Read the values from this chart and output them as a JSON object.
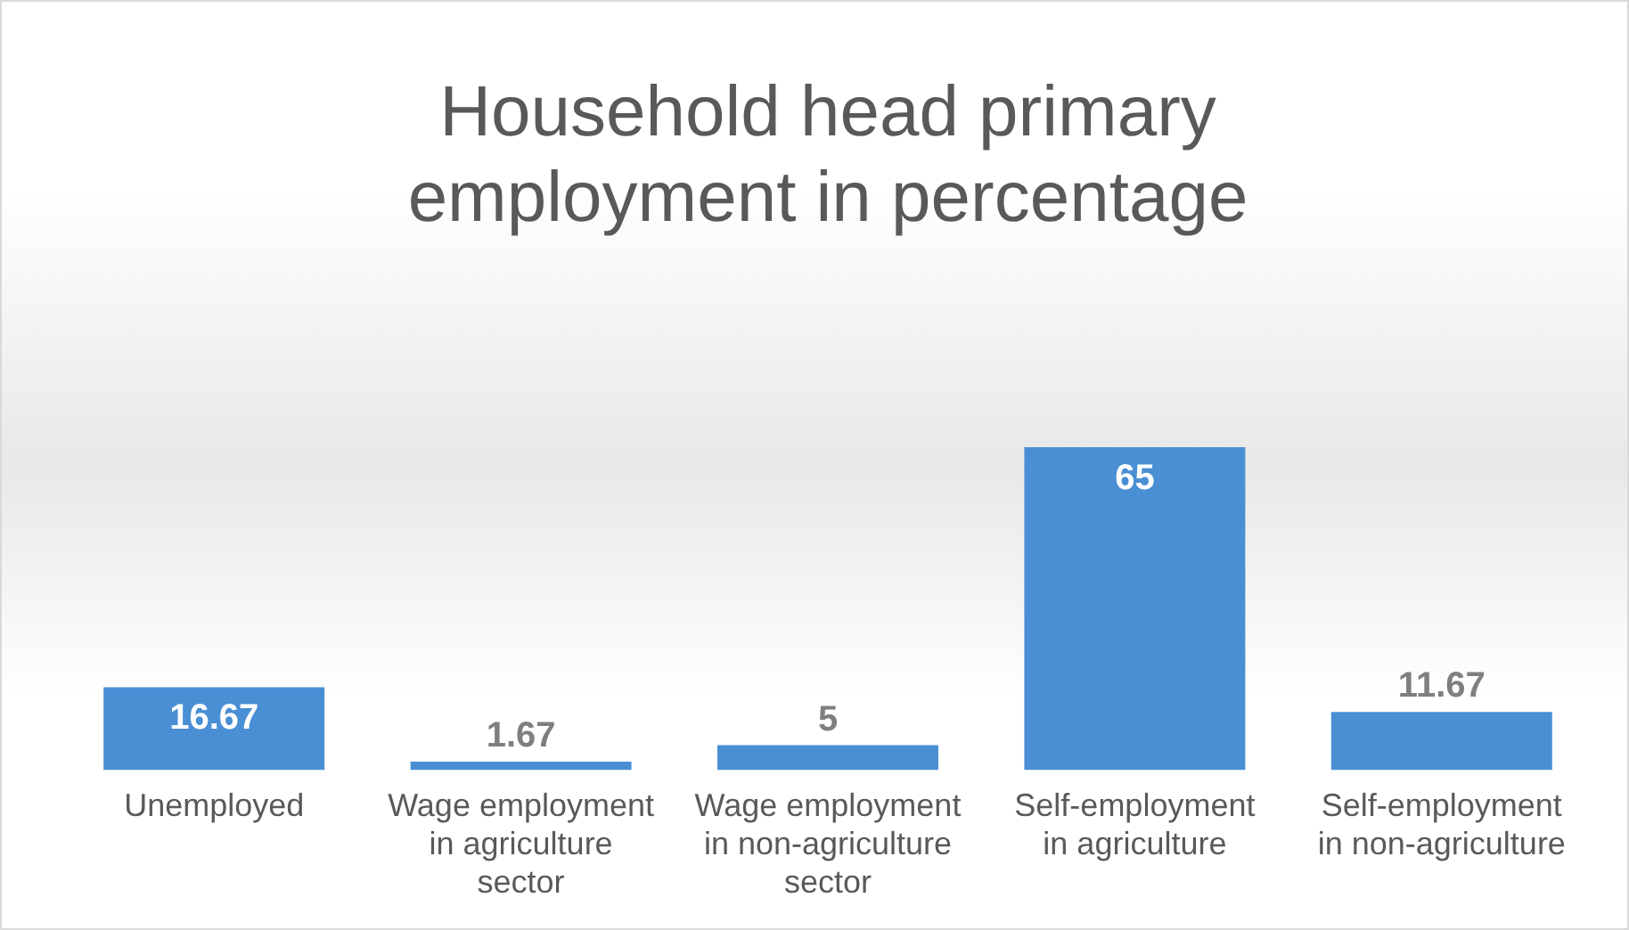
{
  "chart_data": {
    "type": "bar",
    "title": "Household head primary employment in percentage",
    "categories": [
      "Unemployed",
      "Wage employment in agriculture sector",
      "Wage employment in non-agriculture sector",
      "Self-employment in agriculture",
      "Self-employment in non-agriculture"
    ],
    "values": [
      16.67,
      1.67,
      5,
      65,
      11.67
    ],
    "color": "#4a8fd4",
    "data_labels": true,
    "grid": false,
    "legend": false
  }
}
